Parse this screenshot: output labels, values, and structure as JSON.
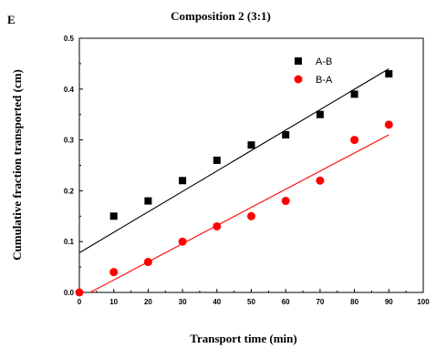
{
  "panel_label": "E",
  "chart_data": {
    "type": "scatter",
    "title": "Composition 2 (3:1)",
    "xlabel": "Transport time (min)",
    "ylabel": "Cumulative fraction transported (cm)",
    "xlim": [
      0,
      100
    ],
    "ylim": [
      0,
      0.5
    ],
    "xticks": [
      "0",
      "10",
      "20",
      "30",
      "40",
      "50",
      "60",
      "70",
      "80",
      "90",
      "100"
    ],
    "yticks": [
      "0.0",
      "0.1",
      "0.2",
      "0.3",
      "0.4",
      "0.5"
    ],
    "grid": false,
    "legend_position": "top-right",
    "series": [
      {
        "name": "A-B",
        "marker": "square",
        "color": "#000000",
        "x": [
          10,
          20,
          30,
          40,
          50,
          60,
          70,
          80,
          90
        ],
        "y": [
          0.15,
          0.18,
          0.22,
          0.26,
          0.29,
          0.31,
          0.35,
          0.39,
          0.43
        ],
        "trendline": {
          "color": "#000000",
          "x": [
            0,
            90
          ],
          "y": [
            0.078,
            0.44
          ]
        }
      },
      {
        "name": "B-A",
        "marker": "circle",
        "color": "#ff0000",
        "x": [
          0,
          10,
          20,
          30,
          40,
          50,
          60,
          70,
          80,
          90
        ],
        "y": [
          0.0,
          0.04,
          0.06,
          0.1,
          0.13,
          0.15,
          0.18,
          0.22,
          0.3,
          0.33
        ],
        "trendline": {
          "color": "#ff0000",
          "x": [
            2,
            90
          ],
          "y": [
            -0.004,
            0.31
          ]
        }
      }
    ]
  }
}
